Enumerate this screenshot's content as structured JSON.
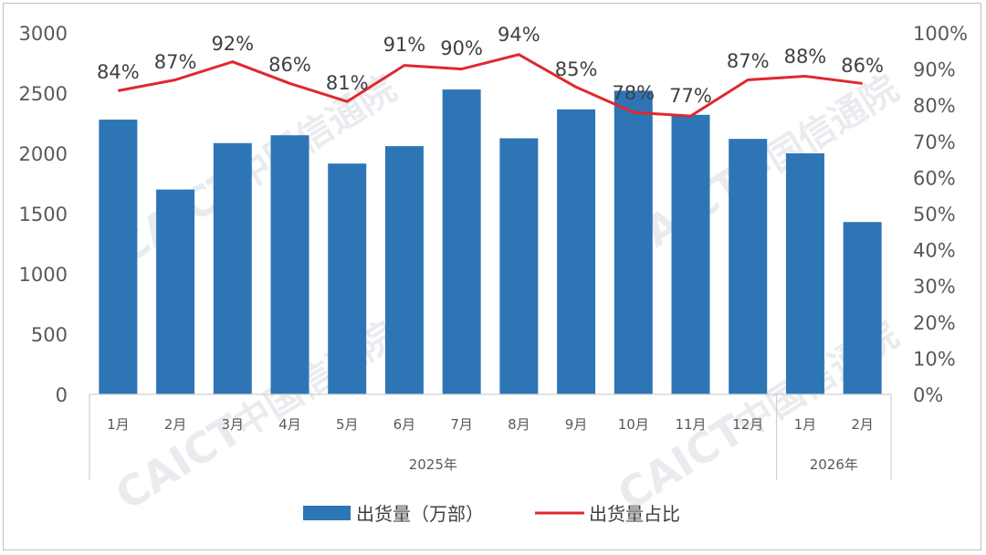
{
  "chart_data": {
    "type": "bar+line",
    "categories": [
      "1月",
      "2月",
      "3月",
      "4月",
      "5月",
      "6月",
      "7月",
      "8月",
      "9月",
      "10月",
      "11月",
      "12月",
      "1月",
      "2月"
    ],
    "groups": [
      {
        "label": "2025年",
        "from": 0,
        "to": 11
      },
      {
        "label": "2026年",
        "from": 12,
        "to": 13
      }
    ],
    "series": [
      {
        "name": "出货量（万部）",
        "type": "bar",
        "axis": "left",
        "color": "#2e75b6",
        "values": [
          2280,
          1700,
          2085,
          2150,
          1915,
          2060,
          2530,
          2125,
          2365,
          2520,
          2320,
          2120,
          2000,
          1430
        ]
      },
      {
        "name": "出货量占比",
        "type": "line",
        "axis": "right",
        "color": "#e0282e",
        "values": [
          84,
          87,
          92,
          86,
          81,
          91,
          90,
          94,
          85,
          78,
          77,
          87,
          88,
          86
        ],
        "labels": [
          "84%",
          "87%",
          "92%",
          "86%",
          "81%",
          "91%",
          "90%",
          "94%",
          "85%",
          "78%",
          "77%",
          "87%",
          "88%",
          "86%"
        ]
      }
    ],
    "y_left": {
      "min": 0,
      "max": 3000,
      "ticks": [
        "0",
        "500",
        "1000",
        "1500",
        "2000",
        "2500",
        "3000"
      ]
    },
    "y_right": {
      "min": 0,
      "max": 100,
      "ticks": [
        "0%",
        "10%",
        "20%",
        "30%",
        "40%",
        "50%",
        "60%",
        "70%",
        "80%",
        "90%",
        "100%"
      ]
    },
    "grid": false,
    "legend_position": "bottom"
  },
  "watermark": {
    "text_latin": "CAICT",
    "text_cn": "中国信通院"
  }
}
